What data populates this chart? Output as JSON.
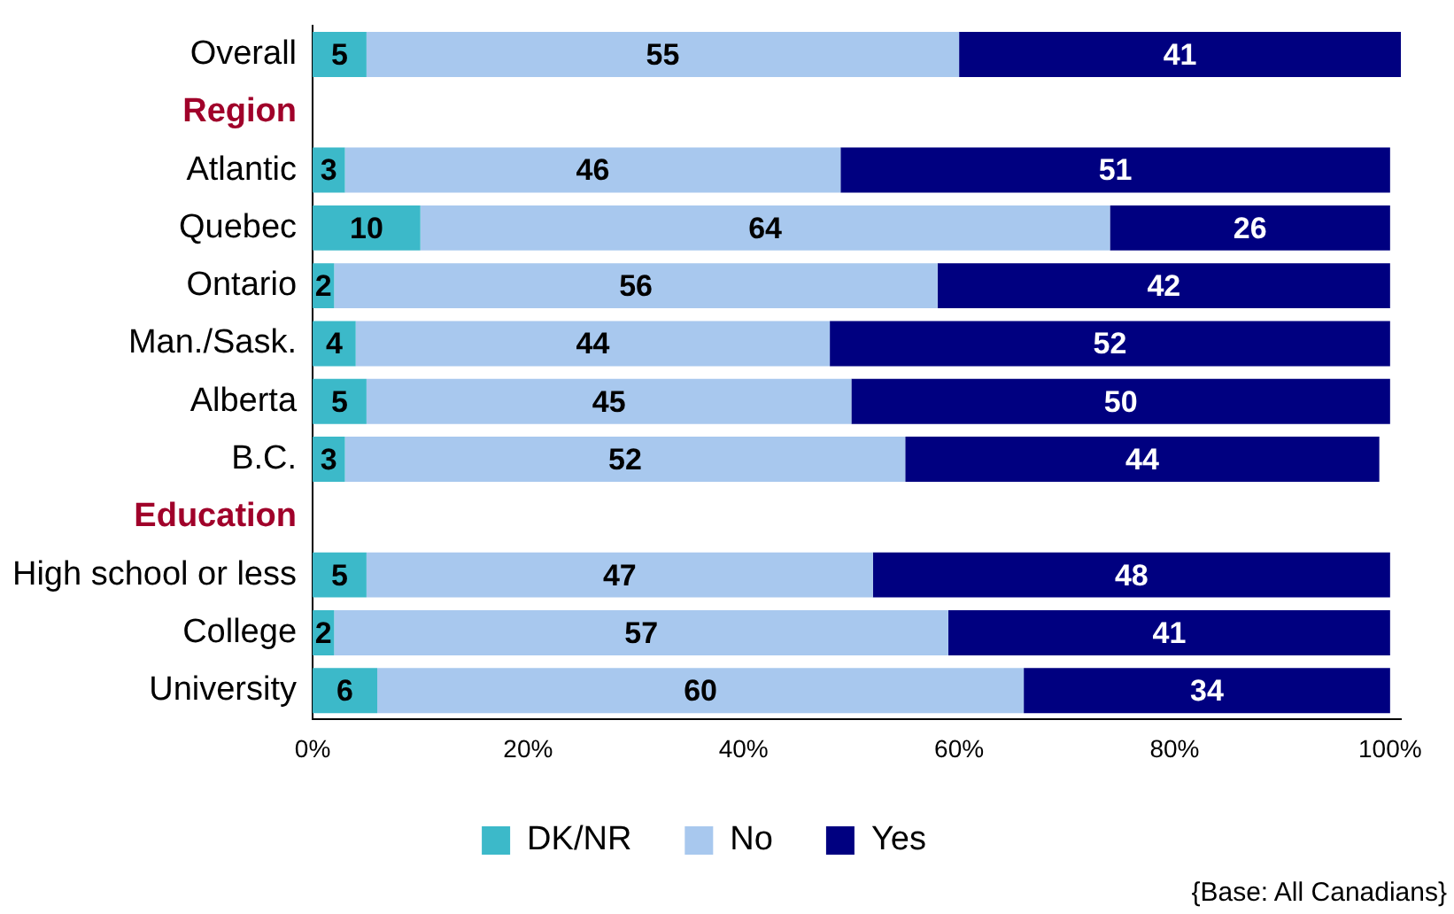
{
  "chart_data": {
    "type": "bar",
    "orientation": "horizontal",
    "stacked": true,
    "categories": [
      "Overall",
      "Region",
      "Atlantic",
      "Quebec",
      "Ontario",
      "Man./Sask.",
      "Alberta",
      "B.C.",
      "Education",
      "High school or less",
      "College",
      "University"
    ],
    "series": [
      {
        "name": "DK/NR",
        "color": "#3cb9c9",
        "values": [
          5,
          null,
          3,
          10,
          2,
          4,
          5,
          3,
          null,
          5,
          2,
          6
        ]
      },
      {
        "name": "No",
        "color": "#a8c8ee",
        "values": [
          55,
          null,
          46,
          64,
          56,
          44,
          45,
          52,
          null,
          47,
          57,
          60
        ]
      },
      {
        "name": "Yes",
        "color": "#000080",
        "values": [
          41,
          null,
          51,
          26,
          42,
          52,
          50,
          44,
          null,
          48,
          41,
          34
        ]
      }
    ],
    "xlim": [
      0,
      101
    ],
    "xticks": [
      {
        "value": 0,
        "label": "0%"
      },
      {
        "value": 20,
        "label": "20%"
      },
      {
        "value": 40,
        "label": "40%"
      },
      {
        "value": 60,
        "label": "60%"
      },
      {
        "value": 80,
        "label": "80%"
      },
      {
        "value": 100,
        "label": "100%"
      }
    ],
    "data_labels": true,
    "grid": false,
    "legend": "bottom",
    "annotations": [
      "{Base: All Canadians}"
    ]
  }
}
